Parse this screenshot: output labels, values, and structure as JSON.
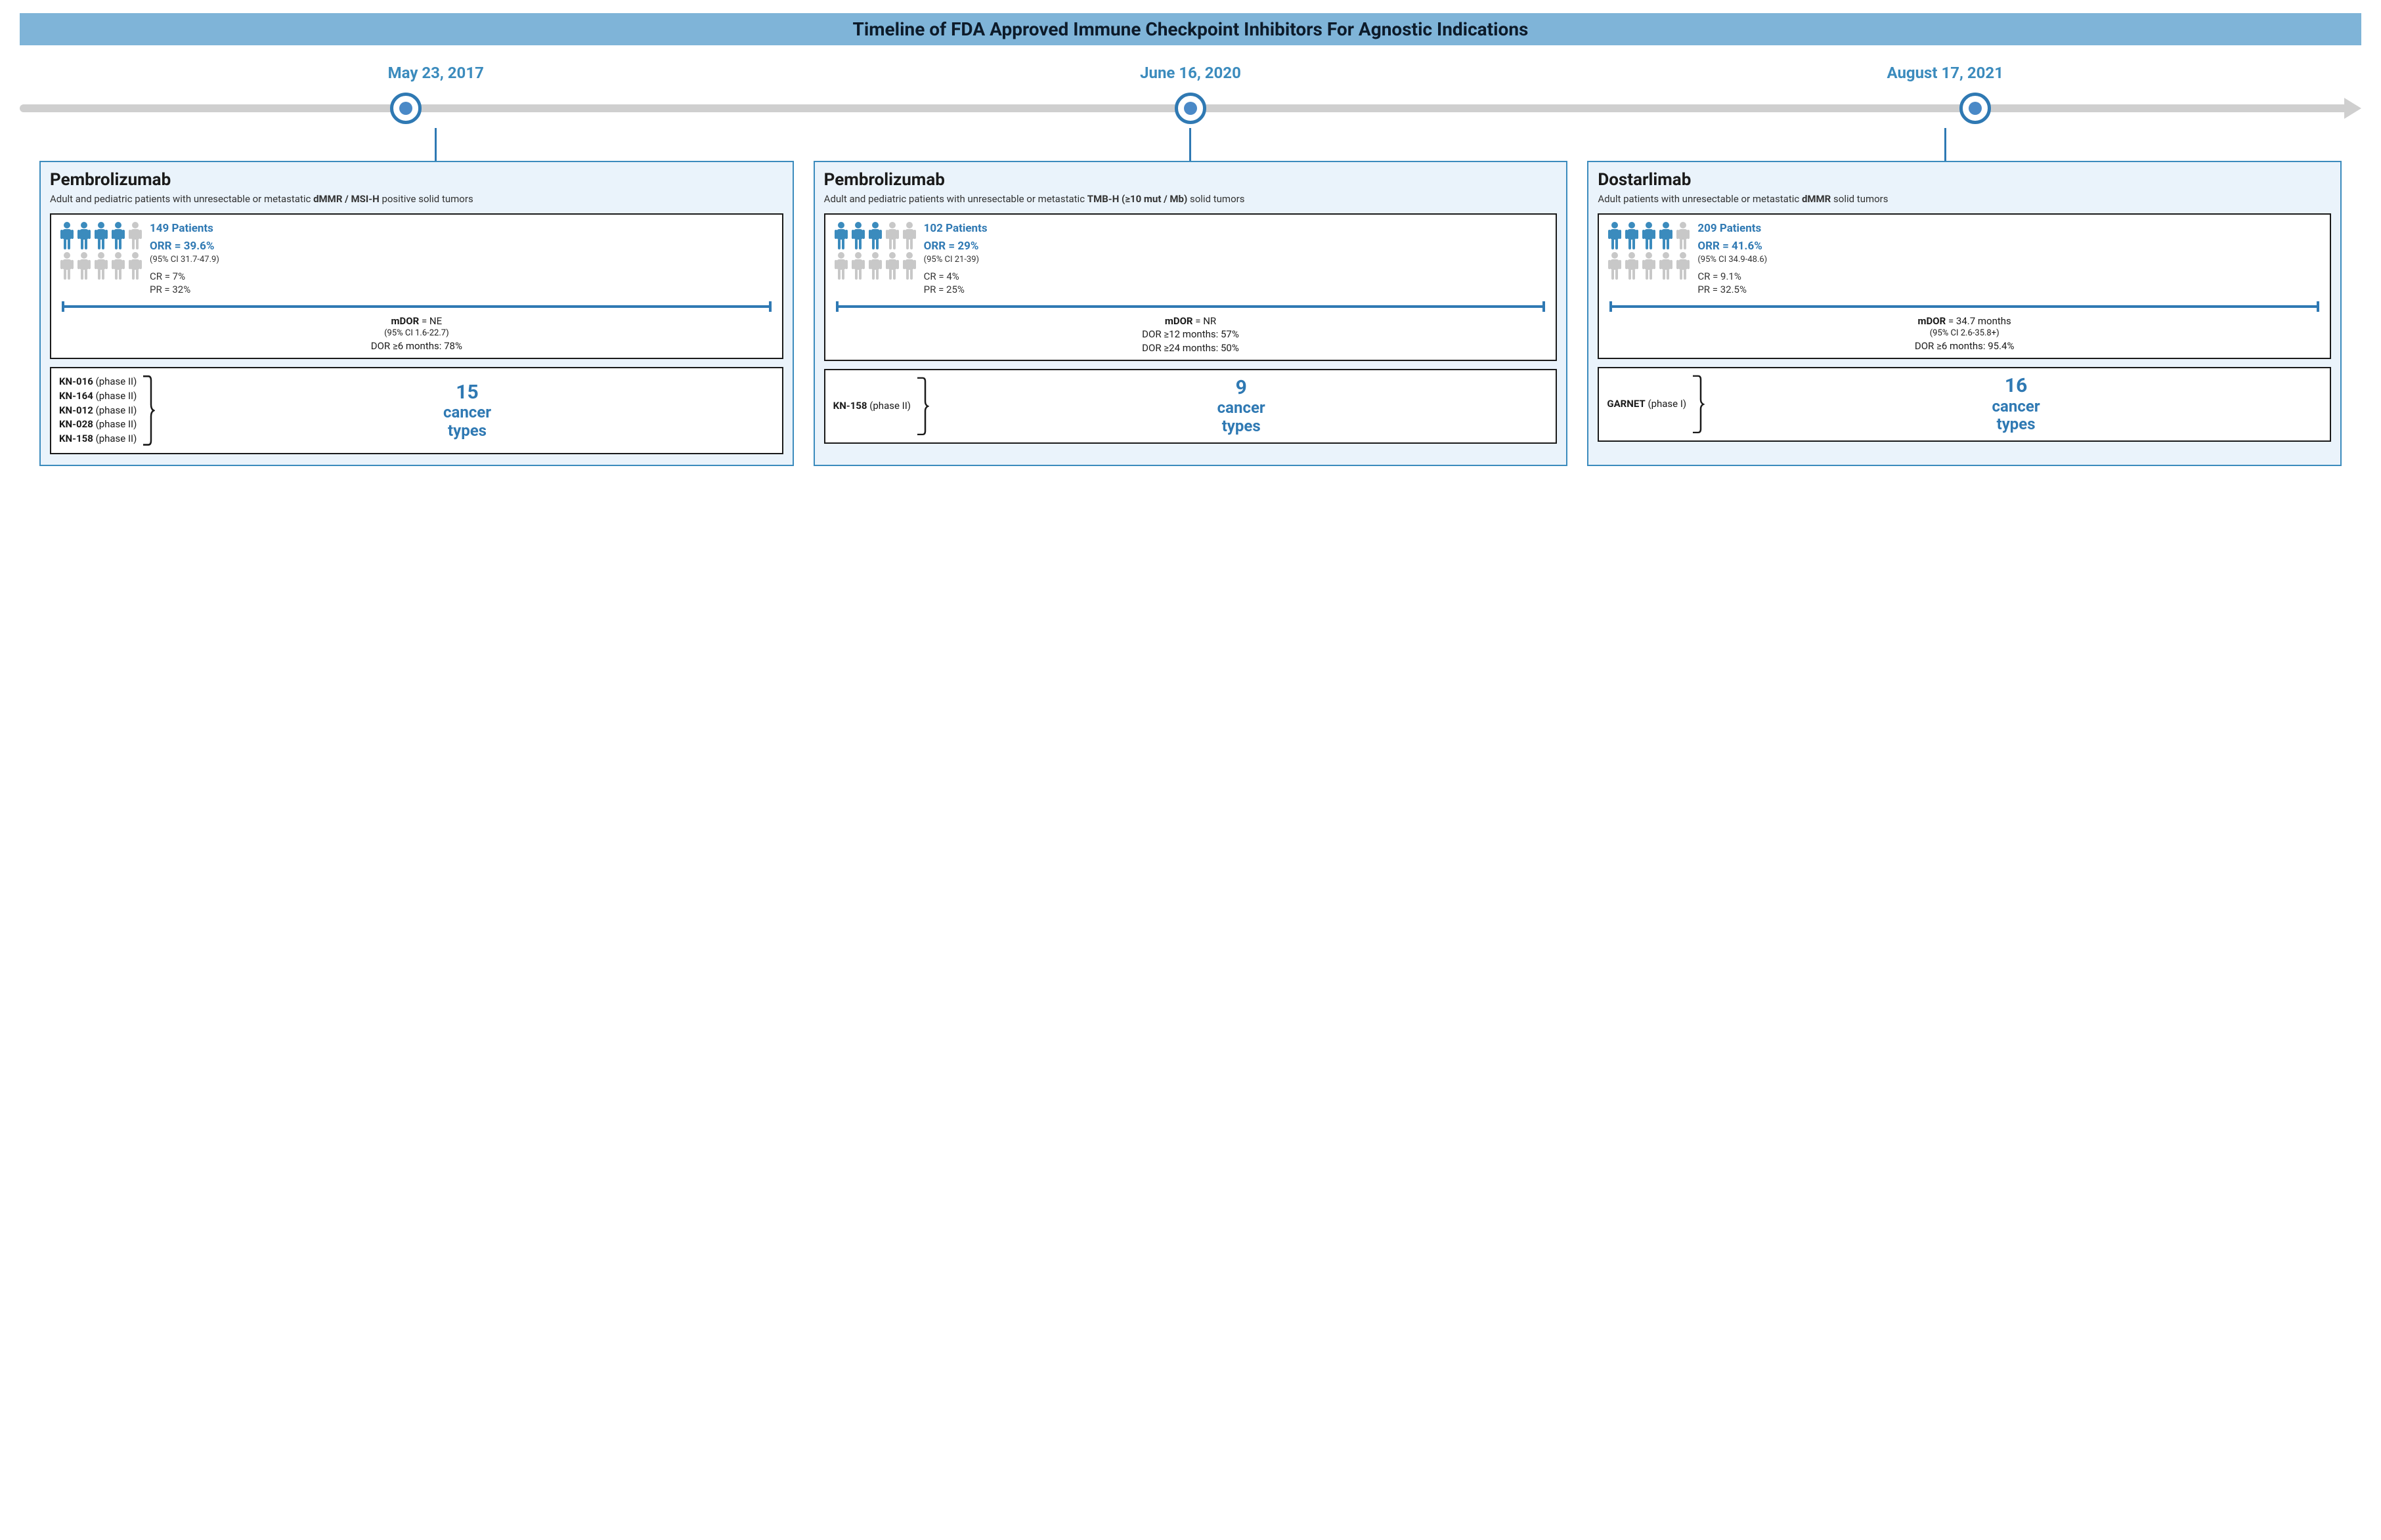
{
  "colors": {
    "accent": "#3b8bbd",
    "accent_dark": "#2f79b3",
    "titlebar_bg": "#7fb4d8",
    "card_bg": "#eaf3fb",
    "axis": "#cfcfcf",
    "text": "#1a1a1a",
    "person_active": "#3b8bbd",
    "person_inactive": "#c8c8c8"
  },
  "layout": {
    "n_events": 3,
    "marker_positions_pct": [
      16.5,
      50,
      83.5
    ]
  },
  "title": "Timeline of FDA Approved Immune Checkpoint Inhibitors For Agnostic Indications",
  "events": [
    {
      "date": "May 23, 2017",
      "drug": "Pembrolizumab",
      "indication_html": "Adult and pediatric patients with unresectable or metastatic <b>dMMR / MSI-H</b> positive solid tumors",
      "people": {
        "row1_active": 4,
        "row1_total": 5,
        "row2_active": 0,
        "row2_total": 5
      },
      "patients": "149 Patients",
      "orr": "ORR = 39.6%",
      "orr_ci": "(95% CI 31.7-47.9)",
      "cr": "CR = 7%",
      "pr": "PR = 32%",
      "mdor_main_html": "<b>mDOR</b> = NE",
      "mdor_ci": "(95% CI 1.6-22.7)",
      "mdor_extra": "DOR ≥6 months: 78%",
      "trials": [
        {
          "name": "KN-016",
          "phase": "(phase II)"
        },
        {
          "name": "KN-164",
          "phase": "(phase II)"
        },
        {
          "name": "KN-012",
          "phase": "(phase II)"
        },
        {
          "name": "KN-028",
          "phase": "(phase II)"
        },
        {
          "name": "KN-158",
          "phase": "(phase II)"
        }
      ],
      "cancer_num": "15",
      "cancer_label": "cancer types"
    },
    {
      "date": "June 16, 2020",
      "drug": "Pembrolizumab",
      "indication_html": "Adult and pediatric patients with unresectable or metastatic <b>TMB-H (≥10 mut / Mb)</b> solid tumors",
      "people": {
        "row1_active": 3,
        "row1_total": 5,
        "row2_active": 0,
        "row2_total": 5
      },
      "patients": "102 Patients",
      "orr": "ORR = 29%",
      "orr_ci": "(95% CI 21-39)",
      "cr": "CR = 4%",
      "pr": "PR = 25%",
      "mdor_main_html": "<b>mDOR</b> = NR",
      "mdor_ci": "",
      "mdor_extra": "DOR ≥12 months: 57%<br>DOR ≥24 months: 50%",
      "trials": [
        {
          "name": "KN-158",
          "phase": "(phase II)"
        }
      ],
      "cancer_num": "9",
      "cancer_label": "cancer types"
    },
    {
      "date": "August 17, 2021",
      "drug": "Dostarlimab",
      "indication_html": "Adult patients with unresectable or metastatic <b>dMMR</b> solid tumors",
      "people": {
        "row1_active": 4,
        "row1_total": 5,
        "row2_active": 0,
        "row2_total": 5
      },
      "patients": "209 Patients",
      "orr": "ORR = 41.6%",
      "orr_ci": "(95% CI 34.9-48.6)",
      "cr": "CR = 9.1%",
      "pr": "PR = 32.5%",
      "mdor_main_html": "<b>mDOR</b> = 34.7 months",
      "mdor_ci": "(95% CI 2.6-35.8+)",
      "mdor_extra": "DOR ≥6 months: 95.4%",
      "trials": [
        {
          "name": "GARNET",
          "phase": "(phase I)"
        }
      ],
      "cancer_num": "16",
      "cancer_label": "cancer types"
    }
  ]
}
